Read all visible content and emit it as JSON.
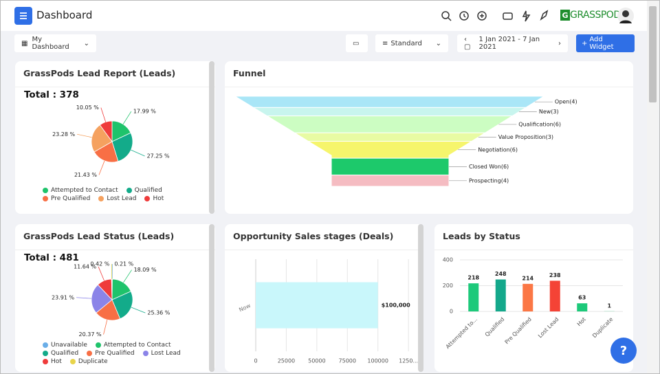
{
  "header": {
    "title": "Dashboard",
    "brand": "GRASSPODS"
  },
  "toolbar": {
    "dashboard": "My Dashboard",
    "view": "Standard",
    "date_range": "1 Jan 2021 - 7 Jan 2021",
    "add_widget": "Add Widget"
  },
  "widgets": [
    {
      "type": "pie",
      "title": "GrassPods Lead Report (Leads)",
      "total": "Total : 378",
      "categories": [
        "Attempted to Contact",
        "Qualified",
        "Pre Qualified",
        "Lost Lead",
        "Hot"
      ],
      "values": [
        17.99,
        27.25,
        21.43,
        23.28,
        10.05
      ],
      "value_labels": [
        "17.99 %",
        "27.25 %",
        "21.43 %",
        "23.28 %",
        "10.05 %"
      ],
      "colors": [
        "#1fc36b",
        "#13ab8a",
        "#f86f45",
        "#f5a15f",
        "#ef3b3b"
      ]
    },
    {
      "type": "funnel",
      "title": "Funnel",
      "values": [
        4,
        3,
        6,
        3,
        6,
        6,
        4
      ],
      "value_labels": [
        "Open(4)",
        "New(3)",
        "Qualification(6)",
        "Value Proposition(3)",
        "Negotiation(6)",
        "Closed Won(6)",
        "Prospecting(4)"
      ],
      "colors": [
        "#a9e6f7",
        "#c8f5ee",
        "#ccfdc2",
        "#e8fba3",
        "#f6f56c",
        "#1dc96b",
        "#f5bcc2"
      ]
    },
    {
      "type": "pie",
      "title": "GrassPods Lead Status (Leads)",
      "total": "Total : 481",
      "categories": [
        "Unavailable",
        "Attempted to Contact",
        "Qualified",
        "Pre Qualified",
        "Lost Lead",
        "Hot",
        "Duplicate"
      ],
      "values": [
        0.21,
        18.09,
        25.36,
        20.37,
        23.91,
        11.64,
        0.42
      ],
      "value_labels": [
        "0.21 %",
        "18.09 %",
        "25.36 %",
        "20.37 %",
        "23.91 %",
        "11.64 %",
        "0.42 %"
      ],
      "colors": [
        "#6aaee8",
        "#1fc36b",
        "#13ab8a",
        "#f86f45",
        "#8b84e8",
        "#ef3b3b",
        "#e8d44a"
      ]
    },
    {
      "type": "hbar",
      "title": "Opportunity Sales stages (Deals)",
      "categories": [
        "Now"
      ],
      "values": [
        100000
      ],
      "value_labels": [
        "$100,000"
      ],
      "color": "#c9f7fb",
      "xlim": [
        0,
        130000
      ],
      "xticks": [
        0,
        25000,
        50000,
        75000,
        100000,
        {
          "value": 125000,
          "label": "1250..."
        }
      ]
    },
    {
      "type": "bar",
      "title": "Leads by Status",
      "categories": [
        "Attempted to...",
        "Qualified",
        "Pre Qualified",
        "Lost Lead",
        "Hot",
        "Duplicate"
      ],
      "values": [
        218,
        248,
        214,
        238,
        63,
        1
      ],
      "colors": [
        "#1dc97a",
        "#14a88b",
        "#fb7745",
        "#f44336",
        "#1dc97a",
        "#1dc97a"
      ],
      "ylim": [
        0,
        400
      ],
      "yticks": [
        0,
        200,
        400
      ]
    }
  ]
}
